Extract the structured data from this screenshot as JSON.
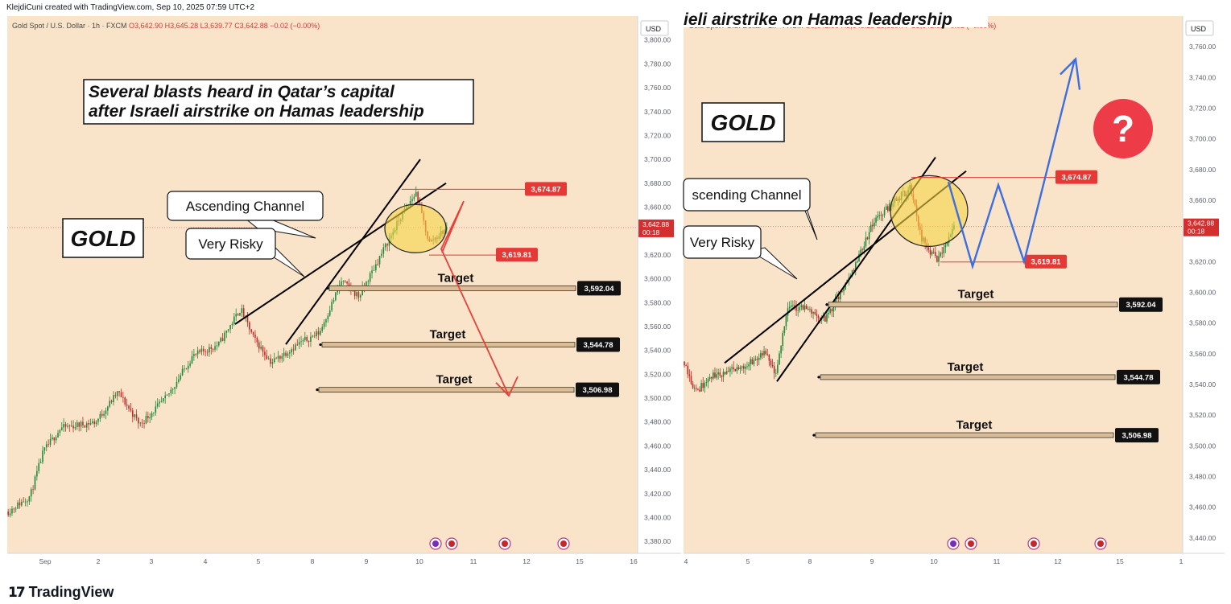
{
  "header": {
    "credit": "KlejdiCuni created with TradingView.com, Sep 10, 2025 07:59 UTC+2"
  },
  "footer": {
    "brand": "TradingView",
    "logo": "tradingview-logo-icon"
  },
  "colors": {
    "bg": "#f9e3c9",
    "up": "#1f8a3a",
    "down": "#c62828",
    "target": "#d9bd99",
    "red_arrow": "#e8403c",
    "blue_arrow": "#3b6fe0",
    "price_line": "#e57373"
  },
  "chart_data": [
    {
      "type": "candlestick",
      "symbol_line": {
        "name": "Gold Spot / U.S. Dollar · 1h · FXCM",
        "o": "O3,642.90",
        "h": "H3,645.28",
        "l": "L3,639.77",
        "c": "C3,642.88",
        "chg": "−0.02 (−0.00%)"
      },
      "currency": "USD",
      "ylim": [
        3370,
        3820
      ],
      "y_ticks": [
        3380,
        3400,
        3420,
        3440,
        3460,
        3480,
        3500,
        3520,
        3540,
        3560,
        3580,
        3600,
        3620,
        3640,
        3660,
        3680,
        3700,
        3720,
        3740,
        3760,
        3780,
        3800
      ],
      "x_ticks": [
        "Sep",
        "2",
        "3",
        "4",
        "5",
        "8",
        "9",
        "10",
        "11",
        "12",
        "15",
        "16"
      ],
      "last_price": {
        "value": 3642.88,
        "label": "3,642.88",
        "countdown": "00:18"
      },
      "headline": [
        "Several blasts heard in Qatar’s capital",
        "after Israeli airstrike on Hamas leadership"
      ],
      "asset_label": "GOLD",
      "callouts": [
        "Ascending Channel",
        "Very Risky"
      ],
      "levels": [
        {
          "value": 3674.87,
          "label": "3,674.87",
          "kind": "resistance"
        },
        {
          "value": 3619.81,
          "label": "3,619.81",
          "kind": "support"
        }
      ],
      "targets": [
        {
          "value": 3592.04,
          "label": "3,592.04",
          "text": "Target"
        },
        {
          "value": 3544.78,
          "label": "3,544.78",
          "text": "Target"
        },
        {
          "value": 3506.98,
          "label": "3,506.98",
          "text": "Target"
        }
      ],
      "scenario": "bearish",
      "event_icons": 4
    },
    {
      "type": "candlestick",
      "symbol_line": {
        "name": "Gold Spot / U.S. Dollar · 1h · FXCM",
        "o": "O3,642.90",
        "h": "H3,645.28",
        "l": "L3,639.77",
        "c": "C3,642.88",
        "chg": "−0.02 (−0.00%)"
      },
      "currency": "USD",
      "ylim": [
        3430,
        3780
      ],
      "y_ticks": [
        3440,
        3460,
        3480,
        3500,
        3520,
        3540,
        3560,
        3580,
        3600,
        3620,
        3640,
        3660,
        3680,
        3700,
        3720,
        3740,
        3760
      ],
      "x_ticks": [
        "4",
        "5",
        "8",
        "9",
        "10",
        "11",
        "12",
        "15",
        "1"
      ],
      "last_price": {
        "value": 3642.88,
        "label": "3,642.88",
        "countdown": "00:18"
      },
      "headline_fragment": "ieli airstrike on Hamas leadership",
      "asset_label": "GOLD",
      "callouts": [
        "scending Channel",
        "Very Risky"
      ],
      "levels": [
        {
          "value": 3674.87,
          "label": "3,674.87",
          "kind": "resistance"
        },
        {
          "value": 3619.81,
          "label": "3,619.81",
          "kind": "support"
        }
      ],
      "targets": [
        {
          "value": 3592.04,
          "label": "3,592.04",
          "text": "Target"
        },
        {
          "value": 3544.78,
          "label": "3,544.78",
          "text": "Target"
        },
        {
          "value": 3506.98,
          "label": "3,506.98",
          "text": "Target"
        }
      ],
      "scenario": "bullish",
      "question_mark": "?",
      "event_icons": 4
    }
  ]
}
